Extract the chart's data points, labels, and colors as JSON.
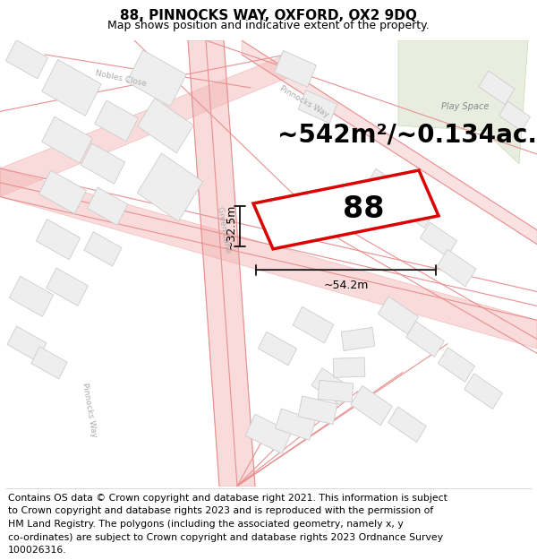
{
  "title": "88, PINNOCKS WAY, OXFORD, OX2 9DQ",
  "subtitle": "Map shows position and indicative extent of the property.",
  "footer_lines": [
    "Contains OS data © Crown copyright and database right 2021. This information is subject",
    "to Crown copyright and database rights 2023 and is reproduced with the permission of",
    "HM Land Registry. The polygons (including the associated geometry, namely x, y",
    "co-ordinates) are subject to Crown copyright and database rights 2023 Ordnance Survey",
    "100026316."
  ],
  "area_label": "~542m²/~0.134ac.",
  "number_label": "88",
  "width_label": "~54.2m",
  "height_label": "~32.5m",
  "bg_color": "#ffffff",
  "road_color": "#f5b8b8",
  "road_edge_color": "#e89090",
  "building_fill": "#eeeeee",
  "building_edge": "#cccccc",
  "plot_edge": "#dd0000",
  "plot_fill": "#ffffff",
  "green_fill": "#e8ede0",
  "green_edge": "#c8d8b0",
  "dim_color": "#111111",
  "text_color": "#aaaaaa",
  "title_fontsize": 11,
  "subtitle_fontsize": 9,
  "footer_fontsize": 7.8,
  "area_fontsize": 20,
  "number_fontsize": 24,
  "dim_fontsize": 9
}
